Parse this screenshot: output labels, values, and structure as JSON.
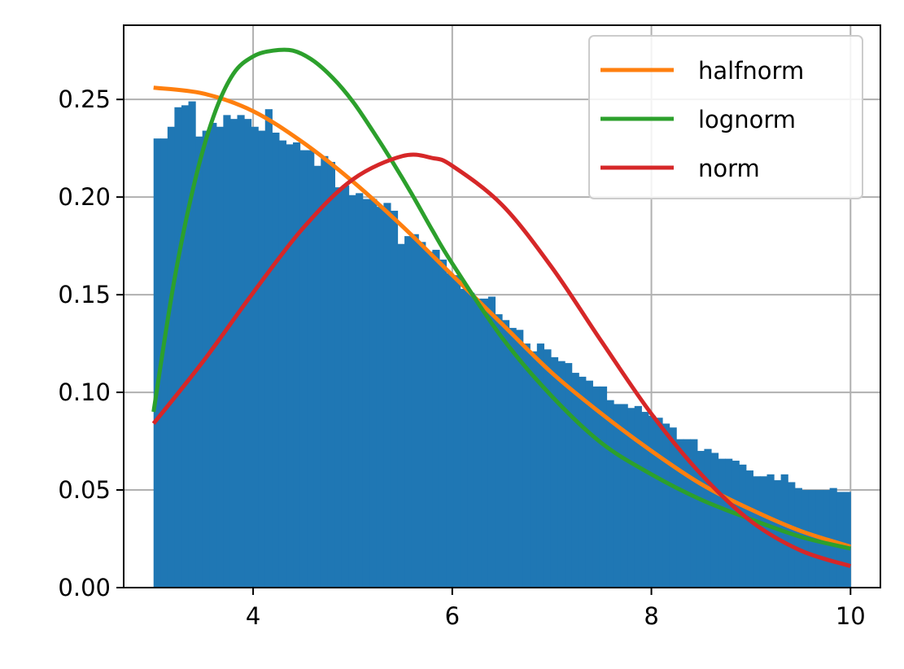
{
  "chart_data": {
    "type": "histogram",
    "x_range": [
      2.7,
      10.3
    ],
    "ylim": [
      0,
      0.288
    ],
    "xticks": [
      4,
      6,
      8,
      10
    ],
    "yticks": [
      0.0,
      0.05,
      0.1,
      0.15,
      0.2,
      0.25
    ],
    "ytick_labels": [
      "0.00",
      "0.05",
      "0.10",
      "0.15",
      "0.20",
      "0.25"
    ],
    "grid": true,
    "legend_position": "top-right",
    "histogram": {
      "bin_start": 3.0,
      "bin_end": 10.0,
      "color": "#1f77b4",
      "values": [
        0.23,
        0.23,
        0.236,
        0.246,
        0.247,
        0.249,
        0.231,
        0.234,
        0.238,
        0.236,
        0.242,
        0.24,
        0.242,
        0.24,
        0.236,
        0.234,
        0.245,
        0.233,
        0.229,
        0.227,
        0.228,
        0.224,
        0.224,
        0.216,
        0.221,
        0.218,
        0.205,
        0.206,
        0.201,
        0.202,
        0.199,
        0.199,
        0.195,
        0.197,
        0.193,
        0.176,
        0.18,
        0.181,
        0.177,
        0.172,
        0.173,
        0.168,
        0.161,
        0.16,
        0.153,
        0.151,
        0.148,
        0.148,
        0.149,
        0.14,
        0.137,
        0.133,
        0.132,
        0.125,
        0.121,
        0.125,
        0.122,
        0.118,
        0.116,
        0.115,
        0.11,
        0.108,
        0.106,
        0.103,
        0.103,
        0.096,
        0.094,
        0.094,
        0.092,
        0.093,
        0.09,
        0.088,
        0.087,
        0.084,
        0.082,
        0.076,
        0.076,
        0.076,
        0.07,
        0.071,
        0.069,
        0.066,
        0.066,
        0.065,
        0.063,
        0.06,
        0.057,
        0.057,
        0.058,
        0.055,
        0.058,
        0.054,
        0.051,
        0.05,
        0.05,
        0.05,
        0.05,
        0.051,
        0.049,
        0.049
      ]
    },
    "series": [
      {
        "name": "halfnorm",
        "color": "#ff7f0e",
        "x": [
          3.0,
          3.5,
          4.0,
          4.5,
          5.0,
          5.5,
          6.0,
          6.5,
          7.0,
          7.5,
          8.0,
          8.5,
          9.0,
          9.5,
          10.0
        ],
        "y": [
          0.256,
          0.253,
          0.244,
          0.228,
          0.208,
          0.185,
          0.16,
          0.135,
          0.11,
          0.089,
          0.07,
          0.053,
          0.04,
          0.029,
          0.021
        ]
      },
      {
        "name": "lognorm",
        "color": "#2ca02c",
        "x": [
          3.0,
          3.2,
          3.4,
          3.6,
          3.8,
          4.0,
          4.2,
          4.4,
          4.6,
          4.8,
          5.0,
          5.2,
          5.4,
          5.6,
          5.8,
          6.0,
          6.5,
          7.0,
          7.5,
          8.0,
          8.5,
          9.0,
          9.5,
          10.0
        ],
        "y": [
          0.09,
          0.155,
          0.205,
          0.241,
          0.263,
          0.272,
          0.275,
          0.275,
          0.27,
          0.261,
          0.249,
          0.234,
          0.218,
          0.201,
          0.183,
          0.166,
          0.128,
          0.098,
          0.074,
          0.058,
          0.045,
          0.035,
          0.026,
          0.02
        ]
      },
      {
        "name": "norm",
        "color": "#d62728",
        "x": [
          3.0,
          3.5,
          4.0,
          4.5,
          5.0,
          5.5,
          5.8,
          6.0,
          6.5,
          7.0,
          7.5,
          8.0,
          8.5,
          9.0,
          9.5,
          10.0
        ],
        "y": [
          0.084,
          0.116,
          0.151,
          0.184,
          0.209,
          0.221,
          0.22,
          0.216,
          0.196,
          0.164,
          0.126,
          0.089,
          0.058,
          0.034,
          0.019,
          0.011
        ]
      }
    ]
  }
}
